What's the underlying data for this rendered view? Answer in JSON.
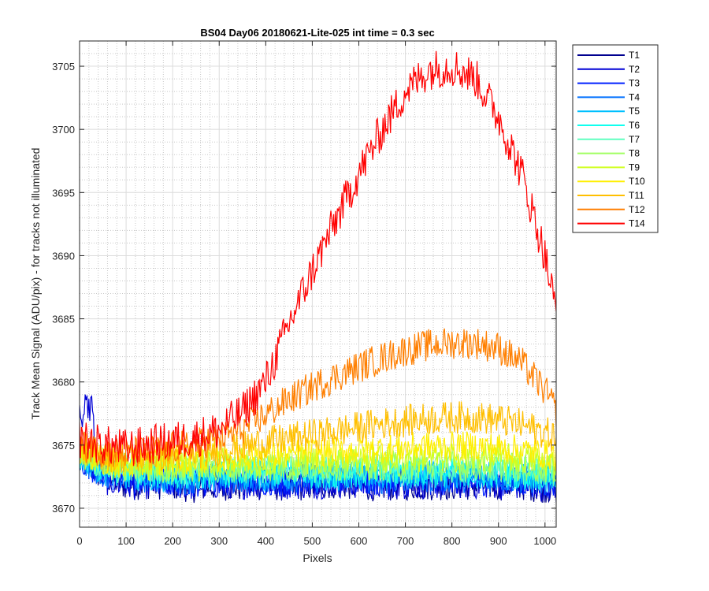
{
  "chart_data": {
    "type": "line",
    "title": "BS04 Day06 20180621-Lite-025 int time = 0.3 sec",
    "xlabel": "Pixels",
    "ylabel": "Track Mean Signal (ADU/pix) - for tracks not illuminated",
    "xlim": [
      0,
      1024
    ],
    "ylim": [
      3668.5,
      3707
    ],
    "xticks": [
      0,
      100,
      200,
      300,
      400,
      500,
      600,
      700,
      800,
      900,
      1000
    ],
    "yticks": [
      3670,
      3675,
      3680,
      3685,
      3690,
      3695,
      3700,
      3705
    ],
    "grid": "major and minor",
    "legend_position": "outside-top-right",
    "x": [
      0,
      50,
      100,
      150,
      200,
      250,
      300,
      350,
      400,
      450,
      500,
      550,
      600,
      650,
      700,
      750,
      800,
      850,
      900,
      950,
      1000,
      1024
    ],
    "series": [
      {
        "name": "T1",
        "color": "#00008f",
        "values": [
          3673.8,
          3672.5,
          3671.8,
          3671.9,
          3671.8,
          3671.6,
          3671.8,
          3671.7,
          3671.8,
          3671.7,
          3671.8,
          3671.9,
          3671.8,
          3671.7,
          3671.8,
          3671.8,
          3671.8,
          3671.8,
          3671.8,
          3671.8,
          3671.6,
          3671.5
        ]
      },
      {
        "name": "T2",
        "color": "#0000d6",
        "values": [
          3677.5,
          3672.3,
          3671.8,
          3671.9,
          3671.9,
          3671.8,
          3671.9,
          3671.9,
          3671.9,
          3671.9,
          3671.9,
          3672.0,
          3671.9,
          3671.8,
          3671.9,
          3671.9,
          3671.9,
          3671.9,
          3671.9,
          3671.8,
          3671.7,
          3671.6
        ]
      },
      {
        "name": "T3",
        "color": "#0020ff",
        "values": [
          3673.9,
          3672.7,
          3672.2,
          3672.2,
          3672.1,
          3672.1,
          3672.2,
          3672.2,
          3672.2,
          3672.2,
          3672.2,
          3672.2,
          3672.2,
          3672.1,
          3672.2,
          3672.2,
          3672.2,
          3672.2,
          3672.2,
          3672.1,
          3672.0,
          3671.9
        ]
      },
      {
        "name": "T4",
        "color": "#0070ff",
        "values": [
          3674.0,
          3672.8,
          3672.4,
          3672.4,
          3672.3,
          3672.3,
          3672.4,
          3672.4,
          3672.4,
          3672.4,
          3672.4,
          3672.4,
          3672.4,
          3672.3,
          3672.4,
          3672.4,
          3672.4,
          3672.4,
          3672.4,
          3672.3,
          3672.2,
          3672.1
        ]
      },
      {
        "name": "T5",
        "color": "#00c0ff",
        "values": [
          3674.1,
          3673.0,
          3672.6,
          3672.6,
          3672.5,
          3672.5,
          3672.6,
          3672.6,
          3672.6,
          3672.6,
          3672.6,
          3672.6,
          3672.6,
          3672.5,
          3672.6,
          3672.6,
          3672.6,
          3672.6,
          3672.6,
          3672.5,
          3672.4,
          3672.3
        ]
      },
      {
        "name": "T6",
        "color": "#10ffef",
        "values": [
          3674.2,
          3673.1,
          3672.8,
          3672.8,
          3672.7,
          3672.7,
          3672.8,
          3672.8,
          3672.8,
          3672.8,
          3672.8,
          3672.8,
          3672.8,
          3672.7,
          3672.8,
          3672.8,
          3672.8,
          3672.8,
          3672.8,
          3672.7,
          3672.6,
          3672.5
        ]
      },
      {
        "name": "T7",
        "color": "#60ffc0",
        "values": [
          3674.3,
          3673.3,
          3673.0,
          3673.0,
          3673.0,
          3673.0,
          3673.0,
          3673.1,
          3673.1,
          3673.1,
          3673.1,
          3673.1,
          3673.1,
          3673.1,
          3673.1,
          3673.1,
          3673.1,
          3673.1,
          3673.1,
          3673.0,
          3672.9,
          3672.8
        ]
      },
      {
        "name": "T8",
        "color": "#a0ff60",
        "values": [
          3674.4,
          3673.5,
          3673.2,
          3673.2,
          3673.2,
          3673.2,
          3673.3,
          3673.3,
          3673.3,
          3673.3,
          3673.4,
          3673.4,
          3673.4,
          3673.4,
          3673.4,
          3673.4,
          3673.4,
          3673.4,
          3673.4,
          3673.3,
          3673.2,
          3673.1
        ]
      },
      {
        "name": "T9",
        "color": "#d0ff20",
        "values": [
          3674.5,
          3673.7,
          3673.4,
          3673.4,
          3673.5,
          3673.5,
          3673.6,
          3673.7,
          3673.7,
          3673.8,
          3673.8,
          3673.9,
          3673.9,
          3673.9,
          3674.0,
          3674.0,
          3674.0,
          3674.0,
          3674.0,
          3673.9,
          3673.7,
          3673.5
        ]
      },
      {
        "name": "T10",
        "color": "#ffef00",
        "values": [
          3674.6,
          3673.9,
          3673.6,
          3673.7,
          3673.8,
          3673.9,
          3674.0,
          3674.1,
          3674.2,
          3674.3,
          3674.4,
          3674.5,
          3674.6,
          3674.7,
          3674.8,
          3674.9,
          3674.9,
          3674.9,
          3674.8,
          3674.6,
          3674.3,
          3674.1
        ]
      },
      {
        "name": "T11",
        "color": "#ffbf00",
        "values": [
          3674.8,
          3674.2,
          3674.0,
          3674.1,
          3674.2,
          3674.4,
          3674.6,
          3674.9,
          3675.2,
          3675.5,
          3675.8,
          3676.1,
          3676.4,
          3676.7,
          3676.9,
          3677.1,
          3677.2,
          3677.2,
          3677.0,
          3676.6,
          3676.0,
          3675.6
        ]
      },
      {
        "name": "T12",
        "color": "#ff7f00",
        "values": [
          3675.0,
          3674.5,
          3674.3,
          3674.5,
          3674.8,
          3675.1,
          3675.5,
          3676.3,
          3677.4,
          3678.6,
          3679.6,
          3680.4,
          3681.2,
          3681.9,
          3682.5,
          3682.9,
          3683.1,
          3683.1,
          3682.7,
          3681.5,
          3679.3,
          3677.7
        ]
      },
      {
        "name": "T14",
        "color": "#ff0000",
        "values": [
          3675.5,
          3675.0,
          3674.7,
          3675.0,
          3675.3,
          3675.6,
          3676.2,
          3677.6,
          3680.0,
          3684.6,
          3688.8,
          3692.8,
          3696.5,
          3700.0,
          3703.0,
          3704.7,
          3705.0,
          3704.1,
          3701.0,
          3696.5,
          3690.0,
          3685.5
        ]
      }
    ]
  }
}
